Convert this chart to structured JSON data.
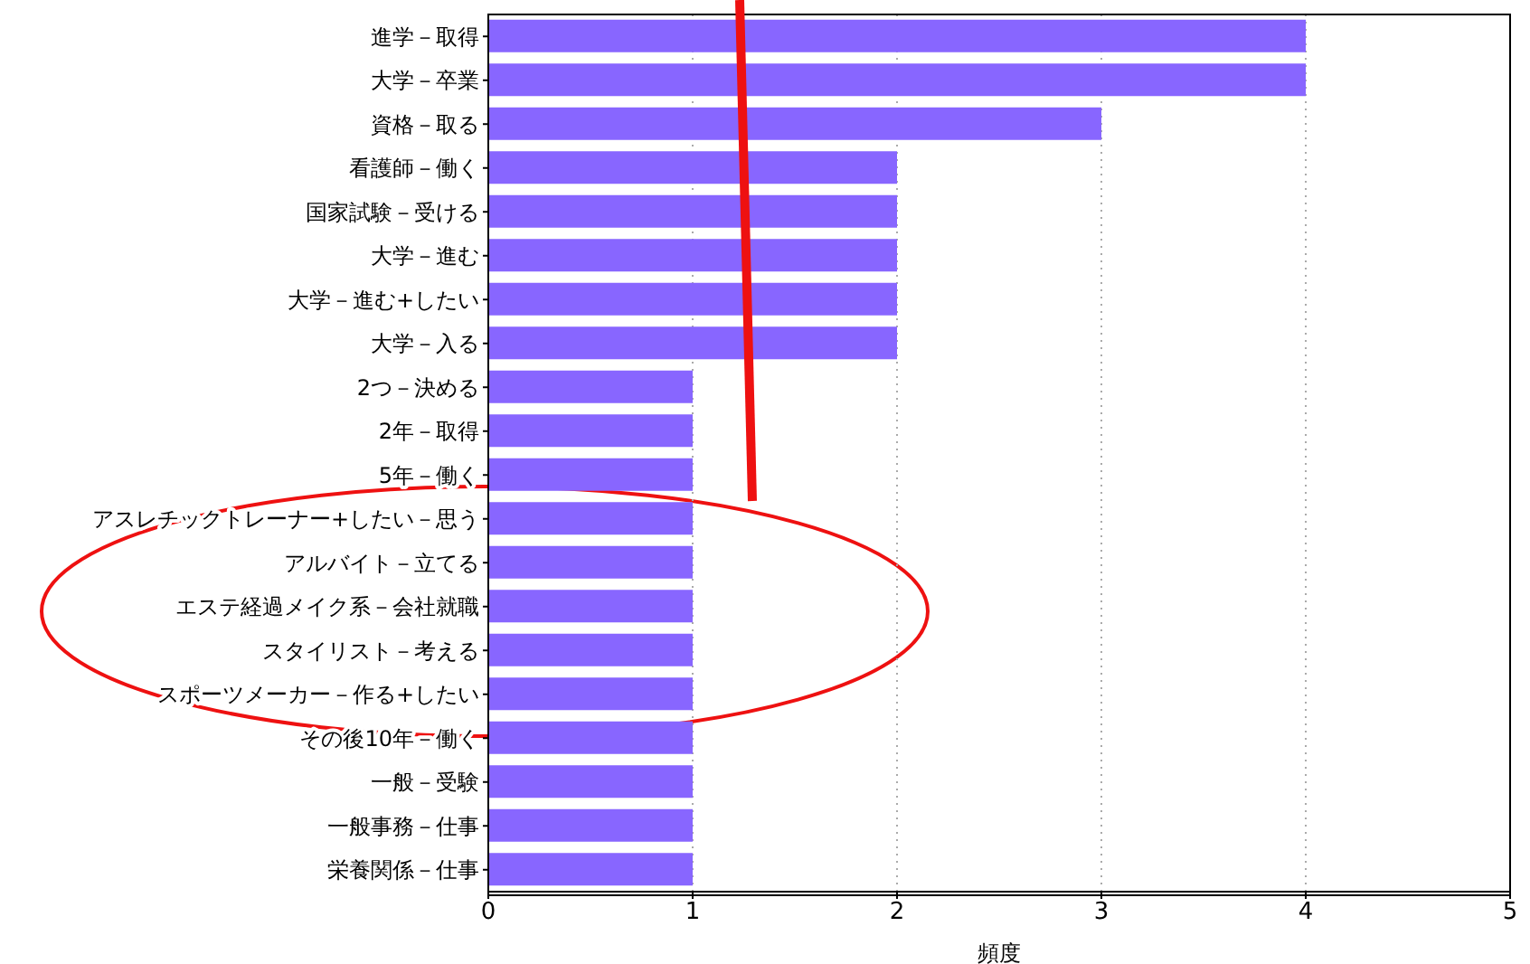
{
  "chart_data": {
    "type": "bar",
    "orientation": "horizontal",
    "xlabel": "頻度",
    "categories": [
      "進学－取得",
      "大学－卒業",
      "資格－取る",
      "看護師－働く",
      "国家試験－受ける",
      "大学－進む",
      "大学－進む+したい",
      "大学－入る",
      "2つ－決める",
      "2年－取得",
      "5年－働く",
      "アスレチックトレーナー+したい－思う",
      "アルバイト－立てる",
      "エステ経過メイク系－会社就職",
      "スタイリスト－考える",
      "スポーツメーカー－作る+したい",
      "その後10年－働く",
      "一般－受験",
      "一般事務－仕事",
      "栄養関係－仕事"
    ],
    "values": [
      4,
      4,
      3,
      2,
      2,
      2,
      2,
      2,
      1,
      1,
      1,
      1,
      1,
      1,
      1,
      1,
      1,
      1,
      1,
      1
    ],
    "color": "#8866ff",
    "xlim": [
      0,
      5
    ],
    "xticks": [
      0,
      1,
      2,
      3,
      4,
      5
    ],
    "grid": "x"
  }
}
